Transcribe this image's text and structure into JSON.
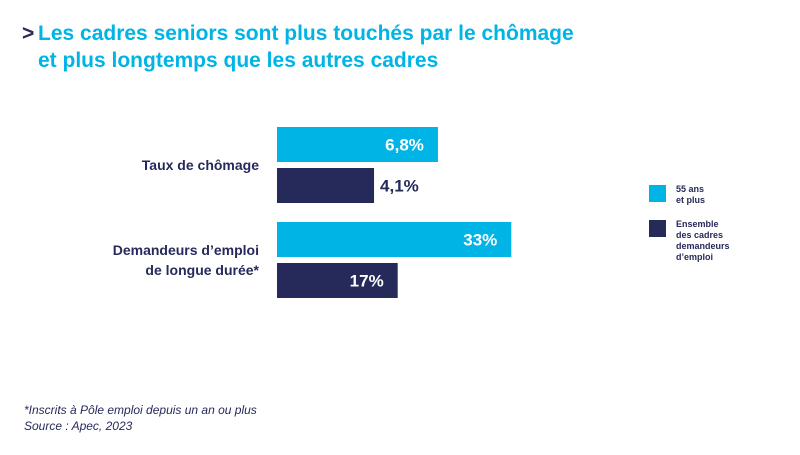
{
  "header": {
    "chevron": ">",
    "title_line1": "Les cadres seniors sont plus touchés par le chômage",
    "title_line2": "et plus longtemps que les autres cadres"
  },
  "chart_data": {
    "type": "bar",
    "orientation": "horizontal",
    "title": "Les cadres seniors sont plus touchés par le chômage et plus longtemps que les autres cadres",
    "groups": [
      {
        "label_lines": [
          "Taux de chômage"
        ],
        "scale_max": 15,
        "bars": [
          {
            "series": "55 ans et plus",
            "value": 6.8,
            "label": "6,8%"
          },
          {
            "series": "Ensemble des cadres demandeurs d'emploi",
            "value": 4.1,
            "label": "4,1%"
          }
        ]
      },
      {
        "label_lines": [
          "Demandeurs d’emploi",
          "de longue durée*"
        ],
        "scale_max": 50,
        "bars": [
          {
            "series": "55 ans et plus",
            "value": 33,
            "label": "33%"
          },
          {
            "series": "Ensemble des cadres demandeurs d'emploi",
            "value": 17,
            "label": "17%"
          }
        ]
      }
    ],
    "legend": [
      {
        "lines": [
          "55 ans",
          "et plus"
        ],
        "color": "#00b4e6"
      },
      {
        "lines": [
          "Ensemble",
          "des cadres",
          "demandeurs",
          "d’emploi"
        ],
        "color": "#262a5a"
      }
    ],
    "colors": {
      "series1": "#00b4e6",
      "series2": "#262a5a",
      "label_inside": "#ffffff"
    }
  },
  "footnote": {
    "line1": "*Inscrits à Pôle emploi depuis un an ou plus",
    "line2": "Source : Apec, 2023"
  }
}
